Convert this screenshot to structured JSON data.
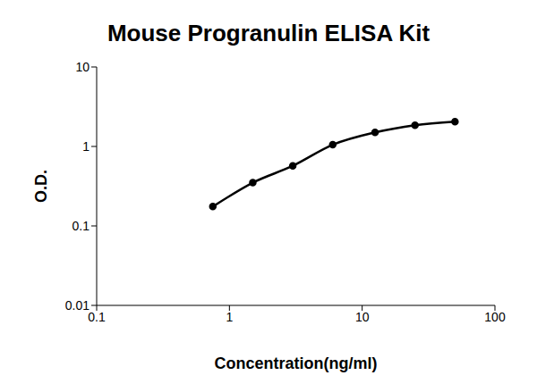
{
  "chart_data": {
    "type": "line",
    "title": "Mouse Progranulin ELISA Kit",
    "x_label": "Concentration(ng/ml)",
    "y_label": "O.D.",
    "x": [
      0.75,
      1.5,
      3,
      6,
      12.5,
      25,
      50
    ],
    "values": [
      0.175,
      0.35,
      0.57,
      1.05,
      1.5,
      1.85,
      2.05
    ],
    "color": "#000000",
    "marker": "circle",
    "log": true,
    "grid": false,
    "xlim": [
      0.1,
      100
    ],
    "xticks": [
      0.1,
      1,
      10,
      100
    ],
    "ylim": [
      0.01,
      10
    ],
    "yticks": [
      0.01,
      0.1,
      1,
      10
    ]
  }
}
